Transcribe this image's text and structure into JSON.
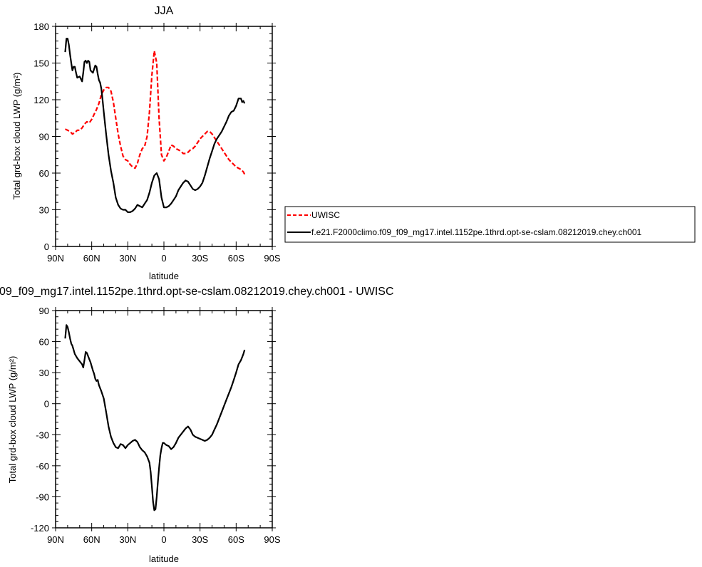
{
  "chart_data": [
    {
      "type": "line",
      "title": "JJA",
      "xlabel": "latitude",
      "ylabel": "Total grd-box cloud LWP (g/m²)",
      "xlim": [
        -90,
        90
      ],
      "ylim": [
        0,
        180
      ],
      "xticks": [
        -90,
        -60,
        -30,
        0,
        30,
        60,
        90
      ],
      "xtick_labels": [
        "90N",
        "60N",
        "30N",
        "0",
        "30S",
        "60S",
        "90S"
      ],
      "yticks": [
        0,
        30,
        60,
        90,
        120,
        150,
        180
      ],
      "ytick_labels": [
        "0",
        "30",
        "60",
        "90",
        "120",
        "150",
        "180"
      ],
      "grid": false,
      "legend_position": "right",
      "series": [
        {
          "name": "UWISC",
          "color": "#ff0000",
          "style": "dashed",
          "x": [
            -82,
            -80,
            -78,
            -76,
            -74,
            -72,
            -70,
            -68,
            -66,
            -64,
            -62,
            -60,
            -58,
            -56,
            -54,
            -52,
            -50,
            -48,
            -46,
            -44,
            -42,
            -40,
            -38,
            -36,
            -34,
            -32,
            -30,
            -28,
            -26,
            -24,
            -22,
            -20,
            -18,
            -16,
            -14,
            -12,
            -10,
            -8,
            -6,
            -4,
            -2,
            0,
            2,
            4,
            6,
            8,
            10,
            12,
            14,
            16,
            18,
            20,
            22,
            24,
            26,
            28,
            30,
            32,
            34,
            36,
            38,
            40,
            42,
            44,
            46,
            48,
            50,
            52,
            54,
            56,
            58,
            60,
            62,
            64,
            66,
            67,
            68
          ],
          "values": [
            96,
            95,
            94,
            92,
            93,
            95,
            95,
            97,
            100,
            102,
            101,
            104,
            108,
            112,
            117,
            124,
            128,
            130,
            130,
            127,
            118,
            105,
            92,
            82,
            74,
            71,
            70,
            67,
            65,
            64,
            68,
            75,
            80,
            82,
            90,
            110,
            140,
            160,
            150,
            105,
            75,
            70,
            73,
            78,
            83,
            82,
            80,
            79,
            78,
            76,
            76,
            77,
            79,
            80,
            82,
            85,
            88,
            90,
            92,
            94,
            94,
            92,
            89,
            86,
            83,
            80,
            77,
            74,
            71,
            69,
            67,
            65,
            64,
            63,
            61,
            59,
            58
          ]
        },
        {
          "name": "f.e21.F2000climo.f09_f09_mg17.intel.1152pe.1thrd.opt-se-cslam.08212019.chey.ch001",
          "color": "#000000",
          "style": "solid",
          "x": [
            -82,
            -81,
            -80,
            -79,
            -78,
            -77,
            -76,
            -75,
            -74,
            -73,
            -72,
            -70,
            -68,
            -67,
            -66,
            -65,
            -64,
            -63,
            -62,
            -61,
            -60,
            -59,
            -58,
            -57,
            -56,
            -55,
            -54,
            -53,
            -52,
            -51,
            -50,
            -48,
            -46,
            -44,
            -42,
            -40,
            -38,
            -36,
            -34,
            -32,
            -30,
            -28,
            -26,
            -24,
            -22,
            -20,
            -18,
            -16,
            -14,
            -12,
            -10,
            -8,
            -6,
            -4,
            -2,
            0,
            2,
            4,
            6,
            8,
            10,
            12,
            14,
            16,
            18,
            20,
            22,
            24,
            26,
            28,
            30,
            32,
            34,
            36,
            38,
            40,
            42,
            44,
            46,
            48,
            50,
            52,
            54,
            56,
            58,
            60,
            62,
            64,
            65,
            66,
            67
          ],
          "values": [
            159,
            170,
            170,
            165,
            157,
            150,
            144,
            147,
            147,
            142,
            138,
            139,
            135,
            142,
            151,
            152,
            150,
            152,
            151,
            144,
            143,
            142,
            145,
            148,
            147,
            141,
            136,
            134,
            129,
            120,
            110,
            92,
            75,
            62,
            52,
            40,
            34,
            31,
            30,
            30,
            28,
            28,
            29,
            31,
            34,
            33,
            32,
            35,
            38,
            44,
            52,
            58,
            60,
            55,
            40,
            32,
            32,
            33,
            35,
            38,
            41,
            46,
            49,
            52,
            54,
            53,
            50,
            47,
            46,
            47,
            49,
            52,
            58,
            65,
            72,
            78,
            84,
            88,
            91,
            94,
            98,
            102,
            107,
            110,
            111,
            115,
            121,
            121,
            118,
            119,
            117
          ]
        }
      ]
    },
    {
      "type": "line",
      "title": "09_f09_mg17.intel.1152pe.1thrd.opt-se-cslam.08212019.chey.ch001 - UWISC",
      "xlabel": "latitude",
      "ylabel": "Total grd-box cloud LWP (g/m²)",
      "xlim": [
        -90,
        90
      ],
      "ylim": [
        -120,
        90
      ],
      "xticks": [
        -90,
        -60,
        -30,
        0,
        30,
        60,
        90
      ],
      "xtick_labels": [
        "90N",
        "60N",
        "30N",
        "0",
        "30S",
        "60S",
        "90S"
      ],
      "yticks": [
        -120,
        -90,
        -60,
        -30,
        0,
        30,
        60,
        90
      ],
      "ytick_labels": [
        "-120",
        "-90",
        "-60",
        "-30",
        "0",
        "30",
        "60",
        "90"
      ],
      "grid": false,
      "series": [
        {
          "color": "#000000",
          "style": "solid",
          "x": [
            -82,
            -81,
            -80,
            -79,
            -78,
            -77,
            -76,
            -74,
            -72,
            -70,
            -68,
            -67,
            -66,
            -65,
            -64,
            -63,
            -62,
            -61,
            -60,
            -59,
            -58,
            -57,
            -56,
            -55,
            -54,
            -52,
            -50,
            -48,
            -46,
            -44,
            -42,
            -40,
            -38,
            -36,
            -34,
            -32,
            -30,
            -28,
            -26,
            -24,
            -22,
            -20,
            -18,
            -16,
            -14,
            -12,
            -11,
            -10,
            -9,
            -8,
            -7,
            -6,
            -5,
            -4,
            -3,
            -2,
            -1,
            0,
            2,
            4,
            6,
            8,
            10,
            12,
            14,
            16,
            18,
            20,
            22,
            24,
            26,
            28,
            30,
            32,
            34,
            36,
            38,
            40,
            42,
            44,
            46,
            48,
            50,
            52,
            54,
            56,
            58,
            60,
            62,
            64,
            65,
            66,
            67
          ],
          "values": [
            63,
            76,
            74,
            69,
            63,
            58,
            56,
            48,
            44,
            41,
            38,
            35,
            42,
            50,
            49,
            46,
            43,
            40,
            36,
            32,
            29,
            24,
            22,
            23,
            18,
            12,
            5,
            -8,
            -22,
            -32,
            -38,
            -42,
            -43,
            -39,
            -40,
            -43,
            -40,
            -38,
            -36,
            -35,
            -37,
            -42,
            -45,
            -47,
            -51,
            -57,
            -66,
            -80,
            -95,
            -103,
            -102,
            -90,
            -75,
            -62,
            -50,
            -43,
            -38,
            -38,
            -40,
            -41,
            -44,
            -42,
            -38,
            -33,
            -30,
            -27,
            -24,
            -22,
            -25,
            -30,
            -32,
            -33,
            -34,
            -35,
            -36,
            -35,
            -33,
            -30,
            -25,
            -20,
            -14,
            -8,
            -2,
            4,
            10,
            16,
            23,
            30,
            38,
            42,
            45,
            48,
            52
          ]
        }
      ]
    }
  ],
  "legend": {
    "items": [
      {
        "label": "UWISC"
      },
      {
        "label": "f.e21.F2000climo.f09_f09_mg17.intel.1152pe.1thrd.opt-se-cslam.08212019.chey.ch001"
      }
    ]
  }
}
